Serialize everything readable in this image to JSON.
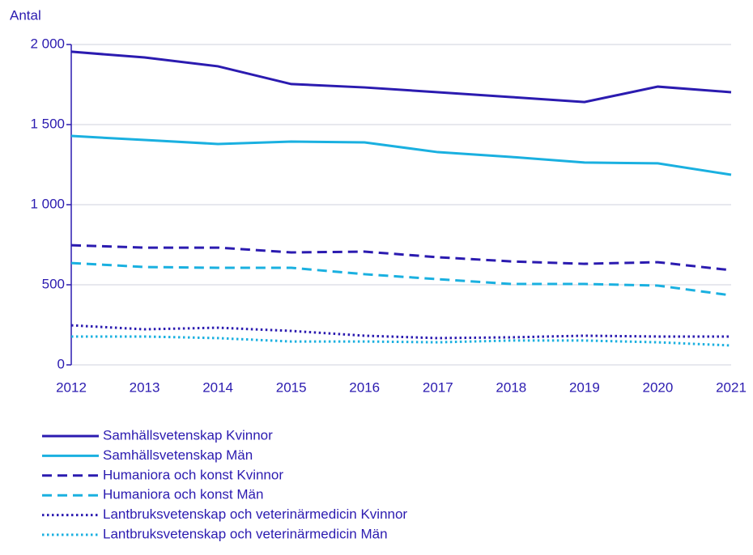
{
  "chart_data": {
    "type": "line",
    "y_label": "Antal",
    "x": [
      2012,
      2013,
      2014,
      2015,
      2016,
      2017,
      2018,
      2019,
      2020,
      2021
    ],
    "xlim": [
      2012,
      2021
    ],
    "xticks": [
      2012,
      2013,
      2014,
      2015,
      2016,
      2017,
      2018,
      2019,
      2020,
      2021
    ],
    "ylim": [
      0,
      2000
    ],
    "yticks": [
      0,
      500,
      {
        "value": 1000,
        "label": "1 000"
      },
      {
        "value": 1500,
        "label": "1 500"
      },
      {
        "value": 2000,
        "label": "2 000"
      }
    ],
    "grid": true,
    "legend": "bottom",
    "series": [
      {
        "name": "Samhällsvetenskap Kvinnor",
        "color": "#2b1bb0",
        "dash": "solid",
        "values": [
          1955,
          1919,
          1864,
          1753,
          1732,
          1702,
          1672,
          1641,
          1737,
          1702
        ]
      },
      {
        "name": "Samhällsvetenskap Män",
        "color": "#1ab0e0",
        "dash": "solid",
        "values": [
          1429,
          1404,
          1379,
          1394,
          1389,
          1328,
          1298,
          1263,
          1258,
          1187
        ]
      },
      {
        "name": "Humaniora och konst Kvinnor",
        "color": "#2b1bb0",
        "dash": "dashed",
        "values": [
          747,
          732,
          732,
          702,
          707,
          672,
          646,
          631,
          641,
          591
        ]
      },
      {
        "name": "Humaniora och konst Män",
        "color": "#1ab0e0",
        "dash": "dashed",
        "values": [
          636,
          611,
          606,
          606,
          566,
          535,
          505,
          505,
          495,
          434
        ]
      },
      {
        "name": "Lantbruksvetenskap och veterinärmedicin Kvinnor",
        "color": "#2b1bb0",
        "dash": "dotted",
        "values": [
          247,
          222,
          232,
          212,
          182,
          167,
          172,
          182,
          177,
          177
        ]
      },
      {
        "name": "Lantbruksvetenskap och veterinärmedicin Män",
        "color": "#1ab0e0",
        "dash": "dotted",
        "values": [
          177,
          177,
          167,
          146,
          146,
          141,
          152,
          152,
          141,
          121
        ]
      }
    ]
  }
}
